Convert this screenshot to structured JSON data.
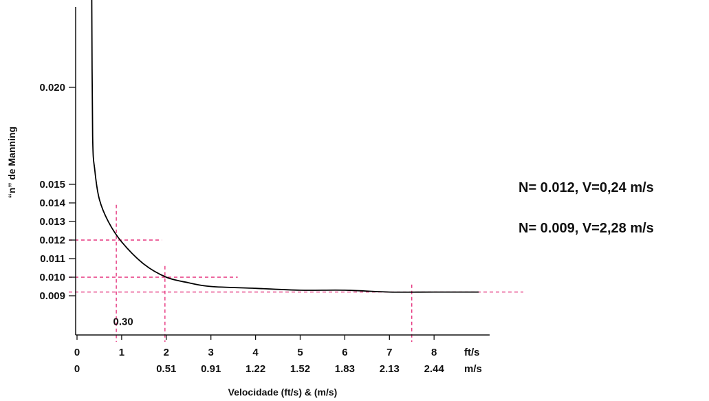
{
  "chart_data": {
    "type": "line",
    "title": "",
    "ylabel": "“n” de Manning",
    "xlabel": "Velocidade (ft/s) & (m/s)",
    "y_ticks": [
      "0.020",
      "0.015",
      "0.014",
      "0.013",
      "0.012",
      "0.011",
      "0.010",
      "0.009"
    ],
    "y_tick_values": [
      0.02,
      0.015,
      0.014,
      0.013,
      0.012,
      0.011,
      0.01,
      0.009
    ],
    "x_ticks_ft": [
      "0",
      "1",
      "2",
      "3",
      "4",
      "5",
      "6",
      "7",
      "8"
    ],
    "x_ticks_ft_values": [
      0,
      1,
      2,
      3,
      4,
      5,
      6,
      7,
      8
    ],
    "x_ticks_m": [
      "0",
      "0.51",
      "0.91",
      "1.22",
      "1.52",
      "1.83",
      "2.13",
      "2.44"
    ],
    "x_ticks_m_positions_ft": [
      0,
      2,
      3,
      4,
      5,
      6,
      7,
      8
    ],
    "x_unit_ft": "ft/s",
    "x_unit_m": "m/s",
    "series": [
      {
        "x": [
          0.33,
          0.35,
          0.4,
          0.5,
          0.7,
          1.0,
          1.5,
          2.0,
          2.5,
          3.0,
          4.0,
          5.0,
          6.0,
          7.0,
          8.0,
          9.0
        ],
        "y": [
          0.0246,
          0.0175,
          0.0157,
          0.0142,
          0.013,
          0.0119,
          0.0107,
          0.01,
          0.0097,
          0.0095,
          0.0094,
          0.0093,
          0.0093,
          0.0092,
          0.0092,
          0.0092
        ],
        "color": "#000000"
      }
    ],
    "reference_lines": [
      {
        "type": "horizontal",
        "y": 0.012,
        "x_to": 1.9
      },
      {
        "type": "horizontal",
        "y": 0.01,
        "x_to": 3.6
      },
      {
        "type": "horizontal",
        "y": 0.0092,
        "x_to": 10.0
      },
      {
        "type": "vertical",
        "x": 0.88,
        "y_from": 0.0079,
        "y_to": 0.0139
      },
      {
        "type": "vertical",
        "x": 1.97,
        "y_from": 0.0079,
        "y_to": 0.0106
      },
      {
        "type": "vertical",
        "x": 7.5,
        "y_from": 0.0079,
        "y_to": 0.0096
      }
    ],
    "reference_color": "#e6357f",
    "annotations": [
      {
        "text": "0.30",
        "x": 0.88,
        "y": 0.0082
      }
    ],
    "ylim": [
      0.0079,
      0.0246
    ],
    "xlim": [
      -0.1,
      10.0
    ]
  },
  "notes": [
    "N= 0.012, V=0,24 m/s",
    "N= 0.009, V=2,28 m/s"
  ]
}
